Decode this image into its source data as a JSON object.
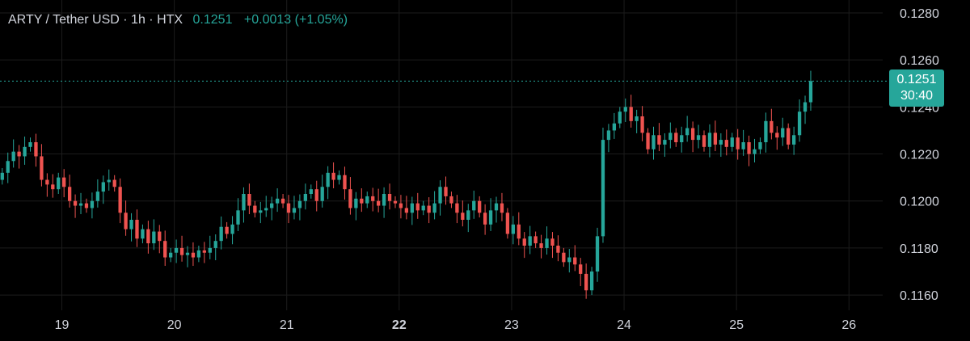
{
  "header": {
    "symbol": "ARTY / Tether USD · 1h · HTX",
    "last": "0.1251",
    "change": "+0.0013 (+1.05%)"
  },
  "price_tag": {
    "price": "0.1251",
    "countdown": "30:40"
  },
  "colors": {
    "up": "#26a69a",
    "down": "#ef5350",
    "grid": "#1c1c1c",
    "background": "#000000"
  },
  "chart_data": {
    "type": "candlestick",
    "title": "ARTY / Tether USD · 1h · HTX",
    "y_ticks": [
      "0.1280",
      "0.1260",
      "0.1240",
      "0.1220",
      "0.1200",
      "0.1180",
      "0.1160"
    ],
    "x_ticks": [
      {
        "label": "19",
        "day": 19,
        "bold": false
      },
      {
        "label": "20",
        "day": 20,
        "bold": false
      },
      {
        "label": "21",
        "day": 21,
        "bold": false
      },
      {
        "label": "22",
        "day": 22,
        "bold": true
      },
      {
        "label": "23",
        "day": 23,
        "bold": false
      },
      {
        "label": "24",
        "day": 24,
        "bold": false
      },
      {
        "label": "25",
        "day": 25,
        "bold": false
      },
      {
        "label": "26",
        "day": 26,
        "bold": false
      }
    ],
    "x_range_days": [
      18.45,
      26.3
    ],
    "ylim": [
      0.11535,
      0.12855
    ],
    "last_price": 0.1251,
    "interval": "1h",
    "closes": [
      0.1212,
      0.1217,
      0.1221,
      0.1219,
      0.1223,
      0.1225,
      0.1219,
      0.1209,
      0.1207,
      0.1205,
      0.121,
      0.1206,
      0.12,
      0.1198,
      0.1199,
      0.1197,
      0.12,
      0.1204,
      0.1208,
      0.1209,
      0.1206,
      0.1195,
      0.1188,
      0.1192,
      0.1184,
      0.1188,
      0.1182,
      0.1187,
      0.1183,
      0.1176,
      0.1178,
      0.118,
      0.1177,
      0.1178,
      0.1176,
      0.1179,
      0.1178,
      0.118,
      0.1183,
      0.1189,
      0.1186,
      0.119,
      0.1196,
      0.1203,
      0.1198,
      0.1195,
      0.1196,
      0.1197,
      0.1199,
      0.1201,
      0.1199,
      0.1195,
      0.1197,
      0.12,
      0.1203,
      0.1205,
      0.12,
      0.1206,
      0.1212,
      0.1209,
      0.1211,
      0.1205,
      0.1197,
      0.1201,
      0.1199,
      0.1202,
      0.12,
      0.1198,
      0.1203,
      0.12,
      0.1199,
      0.1197,
      0.1195,
      0.1199,
      0.1196,
      0.1198,
      0.1195,
      0.1199,
      0.1206,
      0.1202,
      0.1199,
      0.1195,
      0.1192,
      0.1196,
      0.12,
      0.1195,
      0.119,
      0.1196,
      0.1199,
      0.1195,
      0.1186,
      0.119,
      0.1184,
      0.1181,
      0.1185,
      0.1182,
      0.118,
      0.1184,
      0.1181,
      0.1178,
      0.1174,
      0.1176,
      0.1173,
      0.1169,
      0.1162,
      0.117,
      0.1185,
      0.1226,
      0.123,
      0.1233,
      0.1238,
      0.124,
      0.1234,
      0.1236,
      0.1229,
      0.1222,
      0.1228,
      0.1224,
      0.1226,
      0.1229,
      0.1225,
      0.1228,
      0.1231,
      0.1226,
      0.1228,
      0.1223,
      0.1229,
      0.1224,
      0.1226,
      0.1223,
      0.1227,
      0.1222,
      0.1225,
      0.122,
      0.1222,
      0.1225,
      0.1234,
      0.1229,
      0.1227,
      0.1231,
      0.1224,
      0.1228,
      0.1238,
      0.1242,
      0.1251
    ]
  }
}
